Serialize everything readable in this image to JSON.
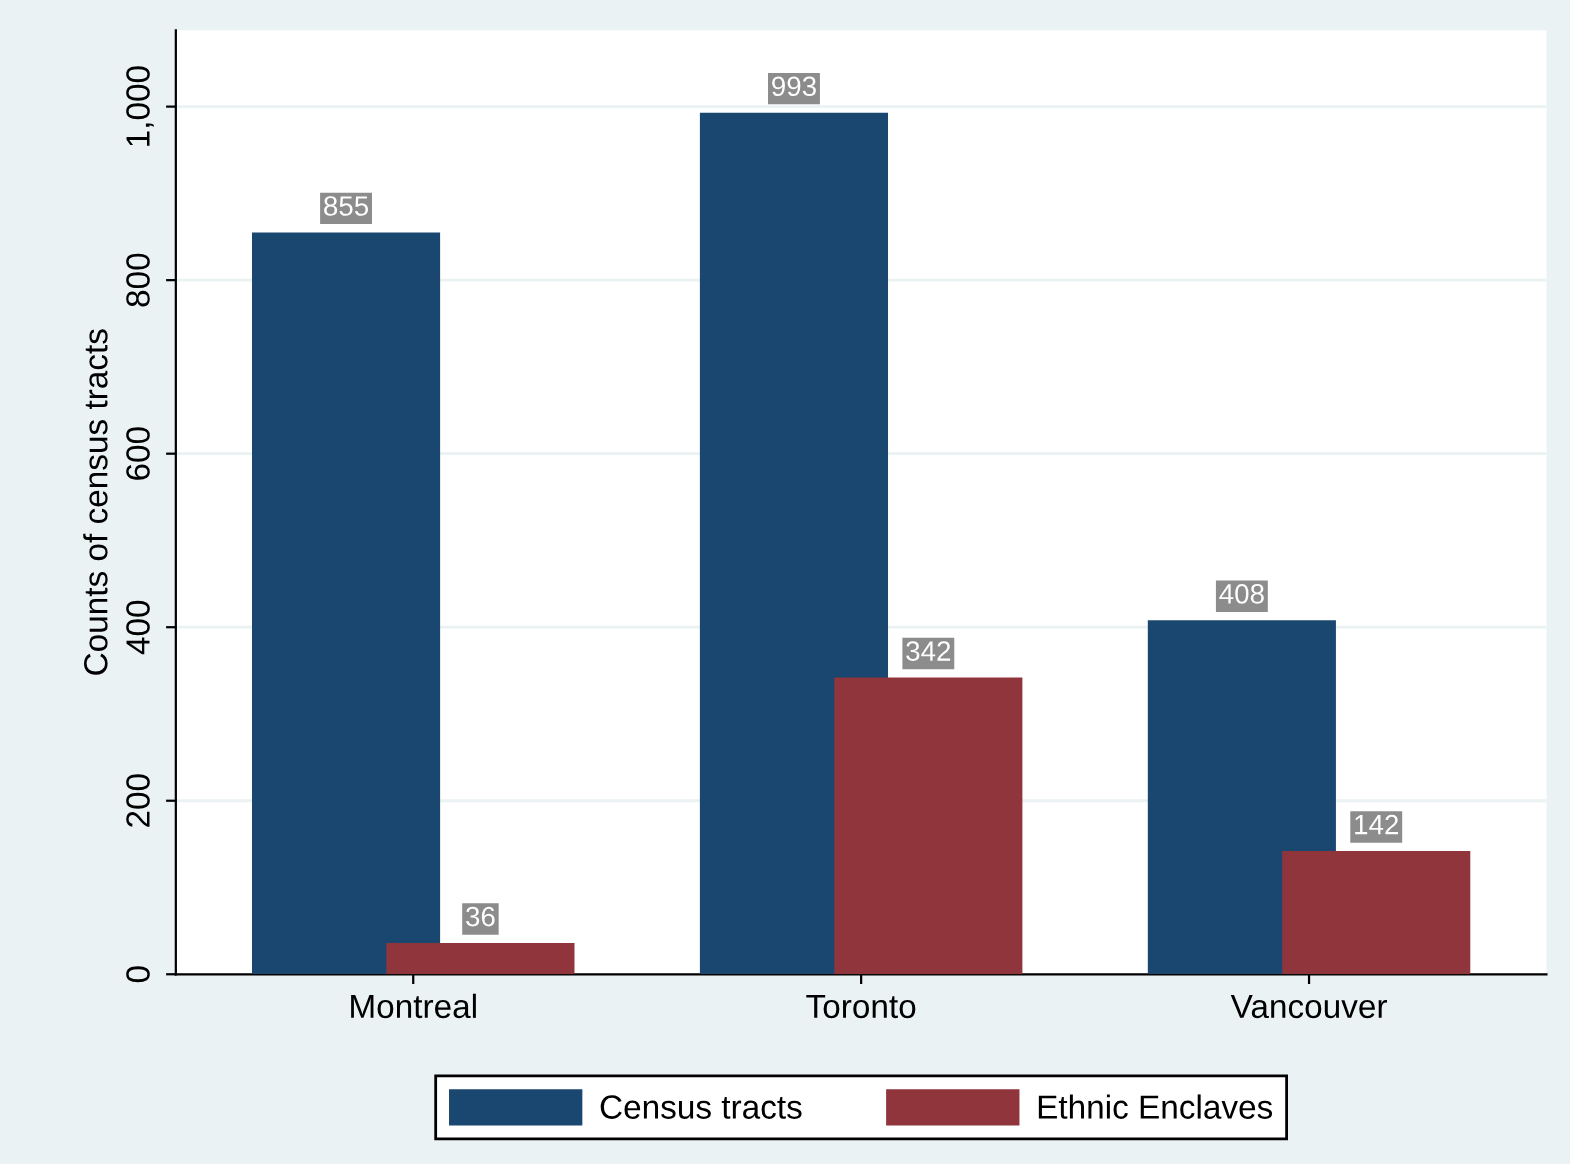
{
  "chart_data": {
    "type": "bar",
    "ylabel": "Counts of census tracts",
    "categories": [
      "Montreal",
      "Toronto",
      "Vancouver"
    ],
    "series": [
      {
        "name": "Census tracts",
        "color": "#1a476f",
        "values": [
          855,
          993,
          408
        ]
      },
      {
        "name": "Ethnic Enclaves",
        "color": "#90353b",
        "values": [
          36,
          342,
          142
        ]
      }
    ],
    "ylim": [
      0,
      1088
    ],
    "yticks": [
      0,
      200,
      400,
      600,
      800,
      {
        "value": 1000,
        "label": "1,000"
      }
    ],
    "grid": "y",
    "legend": "bottom",
    "data_labels": true
  }
}
